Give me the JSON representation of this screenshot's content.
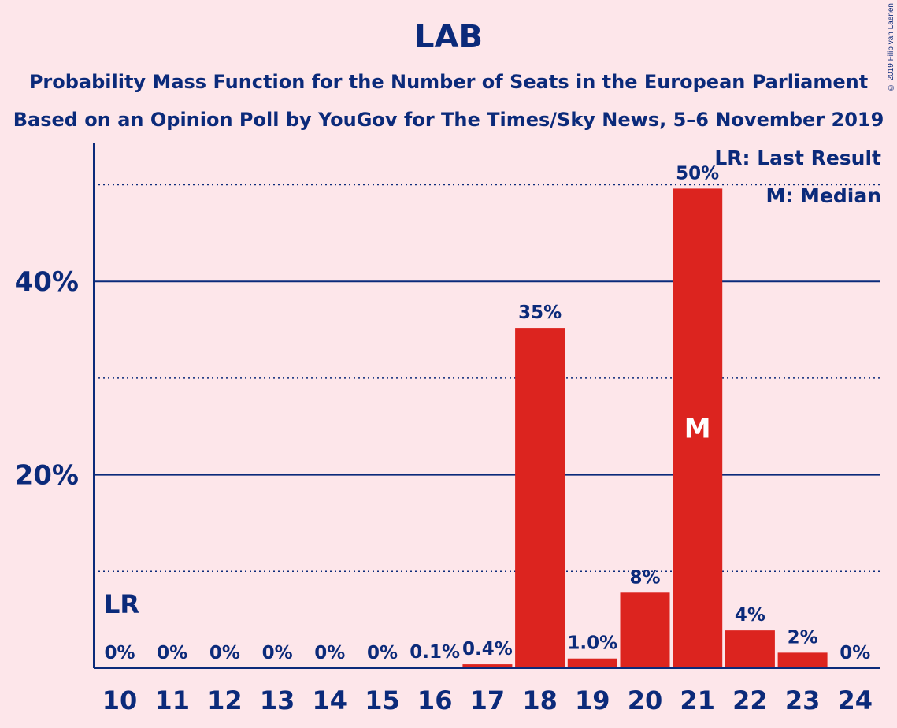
{
  "chart_data": {
    "type": "bar",
    "title": "LAB",
    "subtitle_lines": [
      "Probability Mass Function for the Number of Seats in the European Parliament",
      "Based on an Opinion Poll by YouGov for The Times/Sky News, 5–6 November 2019"
    ],
    "categories": [
      "10",
      "11",
      "12",
      "13",
      "14",
      "15",
      "16",
      "17",
      "18",
      "19",
      "20",
      "21",
      "22",
      "23",
      "24"
    ],
    "values": [
      0,
      0,
      0,
      0,
      0,
      0,
      0.1,
      0.4,
      35.2,
      1.0,
      7.8,
      49.6,
      3.9,
      1.6,
      0
    ],
    "value_labels": [
      "0%",
      "0%",
      "0%",
      "0%",
      "0%",
      "0%",
      "0.1%",
      "0.4%",
      "35%",
      "1.0%",
      "8%",
      "50%",
      "4%",
      "2%",
      "0%"
    ],
    "ylim": [
      0,
      54
    ],
    "yticks": [
      20,
      40
    ],
    "ytick_labels": [
      "20%",
      "40%"
    ],
    "minor_gridlines": [
      10,
      30,
      50
    ],
    "last_result_category": "10",
    "median_category": "21",
    "median_marker": "M",
    "last_result_marker": "LR",
    "legend": [
      "LR: Last Result",
      "M: Median"
    ],
    "legend_position": "top-right",
    "bar_color": "#dc241f",
    "axis_color": "#0b2a7a",
    "background_color": "#fde6ea"
  },
  "copyright": "© 2019 Filip van Laenen"
}
